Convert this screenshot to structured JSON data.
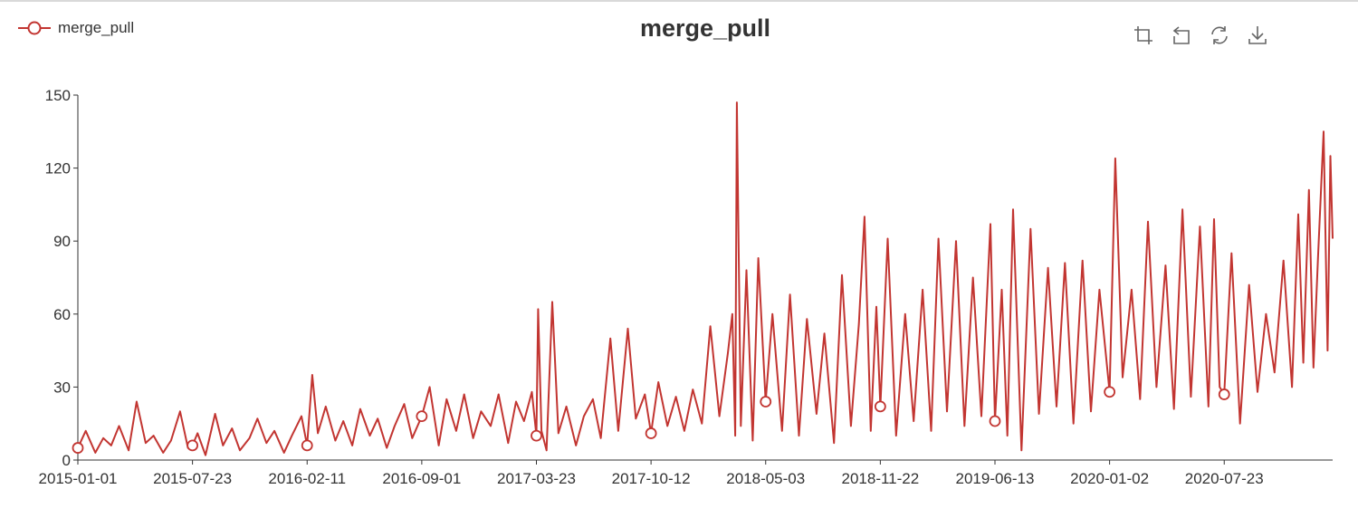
{
  "legend": {
    "label": "merge_pull"
  },
  "toolbox": [
    "zoom-icon",
    "zoom-reset-icon",
    "restore-icon",
    "download-icon"
  ],
  "chart_data": {
    "type": "line",
    "title": "merge_pull",
    "xlabel": "",
    "ylabel": "",
    "x_range": [
      "2015-01-01",
      "2021-01-31"
    ],
    "ylim": [
      0,
      150
    ],
    "y_ticks": [
      0,
      30,
      60,
      90,
      120,
      150
    ],
    "x_tick_labels": [
      "2015-01-01",
      "2015-07-23",
      "2016-02-11",
      "2016-09-01",
      "2017-03-23",
      "2017-10-12",
      "2018-05-03",
      "2018-11-22",
      "2019-06-13",
      "2020-01-02",
      "2020-07-23"
    ],
    "line_color": "#c23531",
    "grid": false,
    "legend_position": "top-left",
    "series": [
      {
        "name": "merge_pull",
        "markers": [
          {
            "x": "2015-01-01",
            "y": 5
          },
          {
            "x": "2015-07-23",
            "y": 6
          },
          {
            "x": "2016-02-11",
            "y": 6
          },
          {
            "x": "2016-09-01",
            "y": 18
          },
          {
            "x": "2017-03-23",
            "y": 10
          },
          {
            "x": "2017-10-12",
            "y": 11
          },
          {
            "x": "2018-05-03",
            "y": 24
          },
          {
            "x": "2018-11-22",
            "y": 22
          },
          {
            "x": "2019-06-13",
            "y": 16
          },
          {
            "x": "2020-01-02",
            "y": 28
          },
          {
            "x": "2020-07-23",
            "y": 27
          }
        ],
        "points": [
          [
            "2015-01-01",
            5
          ],
          [
            "2015-01-15",
            12
          ],
          [
            "2015-02-01",
            3
          ],
          [
            "2015-02-15",
            9
          ],
          [
            "2015-03-01",
            6
          ],
          [
            "2015-03-15",
            14
          ],
          [
            "2015-04-01",
            4
          ],
          [
            "2015-04-15",
            24
          ],
          [
            "2015-05-01",
            7
          ],
          [
            "2015-05-15",
            10
          ],
          [
            "2015-06-01",
            3
          ],
          [
            "2015-06-15",
            8
          ],
          [
            "2015-07-01",
            20
          ],
          [
            "2015-07-15",
            5
          ],
          [
            "2015-07-23",
            6
          ],
          [
            "2015-08-01",
            11
          ],
          [
            "2015-08-15",
            2
          ],
          [
            "2015-09-01",
            19
          ],
          [
            "2015-09-15",
            6
          ],
          [
            "2015-10-01",
            13
          ],
          [
            "2015-10-15",
            4
          ],
          [
            "2015-11-01",
            9
          ],
          [
            "2015-11-15",
            17
          ],
          [
            "2015-12-01",
            7
          ],
          [
            "2015-12-15",
            12
          ],
          [
            "2016-01-01",
            3
          ],
          [
            "2016-01-15",
            10
          ],
          [
            "2016-02-01",
            18
          ],
          [
            "2016-02-11",
            6
          ],
          [
            "2016-02-20",
            35
          ],
          [
            "2016-03-01",
            11
          ],
          [
            "2016-03-15",
            22
          ],
          [
            "2016-04-01",
            8
          ],
          [
            "2016-04-15",
            16
          ],
          [
            "2016-05-01",
            6
          ],
          [
            "2016-05-15",
            21
          ],
          [
            "2016-06-01",
            10
          ],
          [
            "2016-06-15",
            17
          ],
          [
            "2016-07-01",
            5
          ],
          [
            "2016-07-15",
            14
          ],
          [
            "2016-08-01",
            23
          ],
          [
            "2016-08-15",
            9
          ],
          [
            "2016-09-01",
            18
          ],
          [
            "2016-09-15",
            30
          ],
          [
            "2016-10-01",
            6
          ],
          [
            "2016-10-15",
            25
          ],
          [
            "2016-11-01",
            12
          ],
          [
            "2016-11-15",
            27
          ],
          [
            "2016-12-01",
            9
          ],
          [
            "2016-12-15",
            20
          ],
          [
            "2017-01-01",
            14
          ],
          [
            "2017-01-15",
            27
          ],
          [
            "2017-02-01",
            7
          ],
          [
            "2017-02-15",
            24
          ],
          [
            "2017-03-01",
            16
          ],
          [
            "2017-03-15",
            28
          ],
          [
            "2017-03-23",
            10
          ],
          [
            "2017-03-26",
            62
          ],
          [
            "2017-04-01",
            12
          ],
          [
            "2017-04-10",
            4
          ],
          [
            "2017-04-20",
            65
          ],
          [
            "2017-05-01",
            11
          ],
          [
            "2017-05-15",
            22
          ],
          [
            "2017-06-01",
            6
          ],
          [
            "2017-06-15",
            18
          ],
          [
            "2017-07-01",
            25
          ],
          [
            "2017-07-15",
            9
          ],
          [
            "2017-08-01",
            50
          ],
          [
            "2017-08-15",
            12
          ],
          [
            "2017-09-01",
            54
          ],
          [
            "2017-09-15",
            17
          ],
          [
            "2017-10-01",
            27
          ],
          [
            "2017-10-12",
            11
          ],
          [
            "2017-10-25",
            32
          ],
          [
            "2017-11-10",
            14
          ],
          [
            "2017-11-25",
            26
          ],
          [
            "2017-12-10",
            12
          ],
          [
            "2017-12-25",
            29
          ],
          [
            "2018-01-10",
            15
          ],
          [
            "2018-01-25",
            55
          ],
          [
            "2018-02-10",
            18
          ],
          [
            "2018-02-25",
            44
          ],
          [
            "2018-03-05",
            60
          ],
          [
            "2018-03-10",
            10
          ],
          [
            "2018-03-13",
            147
          ],
          [
            "2018-03-20",
            14
          ],
          [
            "2018-03-30",
            78
          ],
          [
            "2018-04-10",
            8
          ],
          [
            "2018-04-20",
            83
          ],
          [
            "2018-05-03",
            24
          ],
          [
            "2018-05-15",
            60
          ],
          [
            "2018-06-01",
            12
          ],
          [
            "2018-06-15",
            68
          ],
          [
            "2018-07-01",
            10
          ],
          [
            "2018-07-15",
            58
          ],
          [
            "2018-08-01",
            19
          ],
          [
            "2018-08-15",
            52
          ],
          [
            "2018-09-01",
            7
          ],
          [
            "2018-09-15",
            76
          ],
          [
            "2018-10-01",
            14
          ],
          [
            "2018-10-15",
            56
          ],
          [
            "2018-10-25",
            100
          ],
          [
            "2018-11-05",
            12
          ],
          [
            "2018-11-15",
            63
          ],
          [
            "2018-11-22",
            22
          ],
          [
            "2018-12-05",
            91
          ],
          [
            "2018-12-20",
            10
          ],
          [
            "2019-01-05",
            60
          ],
          [
            "2019-01-20",
            16
          ],
          [
            "2019-02-05",
            70
          ],
          [
            "2019-02-20",
            12
          ],
          [
            "2019-03-05",
            91
          ],
          [
            "2019-03-20",
            20
          ],
          [
            "2019-04-05",
            90
          ],
          [
            "2019-04-20",
            14
          ],
          [
            "2019-05-05",
            75
          ],
          [
            "2019-05-20",
            18
          ],
          [
            "2019-06-05",
            97
          ],
          [
            "2019-06-13",
            16
          ],
          [
            "2019-06-25",
            70
          ],
          [
            "2019-07-05",
            10
          ],
          [
            "2019-07-15",
            103
          ],
          [
            "2019-07-30",
            4
          ],
          [
            "2019-08-15",
            95
          ],
          [
            "2019-08-30",
            19
          ],
          [
            "2019-09-15",
            79
          ],
          [
            "2019-09-30",
            22
          ],
          [
            "2019-10-15",
            81
          ],
          [
            "2019-10-30",
            15
          ],
          [
            "2019-11-15",
            82
          ],
          [
            "2019-11-30",
            20
          ],
          [
            "2019-12-15",
            70
          ],
          [
            "2020-01-02",
            28
          ],
          [
            "2020-01-12",
            124
          ],
          [
            "2020-01-25",
            34
          ],
          [
            "2020-02-10",
            70
          ],
          [
            "2020-02-25",
            25
          ],
          [
            "2020-03-10",
            98
          ],
          [
            "2020-03-25",
            30
          ],
          [
            "2020-04-10",
            80
          ],
          [
            "2020-04-25",
            21
          ],
          [
            "2020-05-10",
            103
          ],
          [
            "2020-05-25",
            26
          ],
          [
            "2020-06-10",
            96
          ],
          [
            "2020-06-25",
            22
          ],
          [
            "2020-07-05",
            99
          ],
          [
            "2020-07-15",
            30
          ],
          [
            "2020-07-23",
            27
          ],
          [
            "2020-08-05",
            85
          ],
          [
            "2020-08-20",
            15
          ],
          [
            "2020-09-05",
            72
          ],
          [
            "2020-09-20",
            28
          ],
          [
            "2020-10-05",
            60
          ],
          [
            "2020-10-20",
            36
          ],
          [
            "2020-11-05",
            82
          ],
          [
            "2020-11-20",
            30
          ],
          [
            "2020-12-01",
            101
          ],
          [
            "2020-12-10",
            40
          ],
          [
            "2020-12-20",
            111
          ],
          [
            "2020-12-28",
            38
          ],
          [
            "2021-01-05",
            83
          ],
          [
            "2021-01-15",
            135
          ],
          [
            "2021-01-22",
            45
          ],
          [
            "2021-01-27",
            125
          ],
          [
            "2021-01-31",
            91
          ]
        ]
      }
    ]
  }
}
